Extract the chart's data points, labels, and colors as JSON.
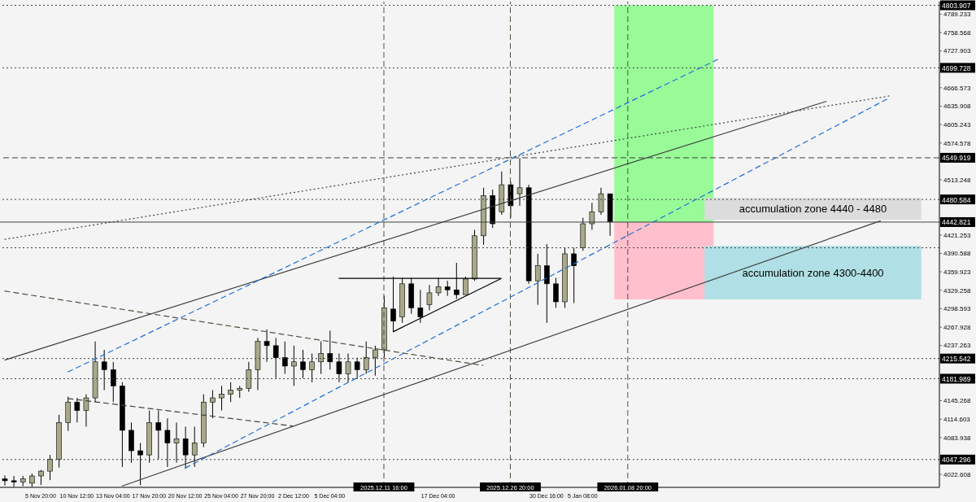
{
  "chart_data": {
    "type": "candlestick",
    "categories": [
      null,
      null,
      null,
      null,
      "5 Nov 20:00",
      null,
      null,
      null,
      "10 Nov 12:00",
      null,
      null,
      null,
      "13 Nov 04:00",
      null,
      null,
      null,
      "17 Nov 20:00",
      null,
      null,
      null,
      "20 Nov 12:00",
      null,
      null,
      null,
      "25 Nov 04:00",
      null,
      null,
      null,
      "27 Nov 20:00",
      null,
      null,
      null,
      "2 Dec 12:00",
      null,
      null,
      null,
      "5 Dec 04:00",
      null,
      null,
      null,
      null,
      null,
      "2025.12.11 16:00",
      null,
      null,
      null,
      null,
      null,
      "17 Dec 04:00",
      null,
      null,
      null,
      null,
      null,
      null,
      null,
      "2025.12.26 20:00",
      null,
      null,
      null,
      "30 Dec 16:00",
      null,
      null,
      null,
      "5 Jan 08:00",
      null,
      null,
      null,
      null,
      "2026.01.08 20:00",
      null,
      null,
      null,
      null,
      null,
      null,
      null,
      null,
      null,
      null,
      null,
      null,
      null,
      null,
      null,
      null,
      null,
      null,
      null,
      null,
      null,
      null,
      null,
      null,
      null,
      null,
      null,
      null,
      null,
      null,
      null,
      null,
      null,
      null
    ],
    "ohlc": [
      [
        4015,
        4021,
        4004,
        4012
      ],
      [
        4012,
        4020,
        4002,
        4010
      ],
      [
        4010,
        4020,
        4003,
        4015
      ],
      [
        4008,
        4024,
        4002,
        4020
      ],
      [
        4020,
        4030,
        4005,
        4028
      ],
      [
        4028,
        4055,
        4013,
        4048
      ],
      [
        4048,
        4122,
        4034,
        4109
      ],
      [
        4109,
        4152,
        4095,
        4143
      ],
      [
        4143,
        4150,
        4109,
        4129
      ],
      [
        4129,
        4156,
        4102,
        4150
      ],
      [
        4150,
        4244,
        4143,
        4210
      ],
      [
        4210,
        4230,
        4163,
        4197
      ],
      [
        4197,
        4210,
        4143,
        4170
      ],
      [
        4170,
        4176,
        4035,
        4096
      ],
      [
        4096,
        4109,
        4042,
        4062
      ],
      [
        4062,
        4075,
        4005,
        4055
      ],
      [
        4055,
        4129,
        4042,
        4109
      ],
      [
        4109,
        4129,
        4048,
        4096
      ],
      [
        4096,
        4116,
        4035,
        4075
      ],
      [
        4075,
        4109,
        4042,
        4082
      ],
      [
        4082,
        4102,
        4032,
        4055
      ],
      [
        4055,
        4102,
        4035,
        4075
      ],
      [
        4075,
        4156,
        4068,
        4143
      ],
      [
        4143,
        4163,
        4116,
        4150
      ],
      [
        4150,
        4170,
        4129,
        4156
      ],
      [
        4156,
        4176,
        4143,
        4163
      ],
      [
        4163,
        4170,
        4150,
        4166
      ],
      [
        4166,
        4210,
        4160,
        4197
      ],
      [
        4197,
        4250,
        4163,
        4244
      ],
      [
        4244,
        4264,
        4210,
        4237
      ],
      [
        4237,
        4250,
        4183,
        4217
      ],
      [
        4217,
        4244,
        4190,
        4203
      ],
      [
        4203,
        4237,
        4170,
        4210
      ],
      [
        4210,
        4230,
        4183,
        4197
      ],
      [
        4197,
        4224,
        4176,
        4210
      ],
      [
        4210,
        4244,
        4190,
        4224
      ],
      [
        4224,
        4262,
        4197,
        4210
      ],
      [
        4210,
        4224,
        4176,
        4190
      ],
      [
        4190,
        4224,
        4176,
        4210
      ],
      [
        4210,
        4217,
        4183,
        4197
      ],
      [
        4197,
        4244,
        4190,
        4217
      ],
      [
        4217,
        4237,
        4187,
        4230
      ],
      [
        4230,
        4320,
        4217,
        4300
      ],
      [
        4298,
        4352,
        4260,
        4278
      ],
      [
        4285,
        4350,
        4275,
        4340
      ],
      [
        4340,
        4350,
        4290,
        4300
      ],
      [
        4300,
        4330,
        4275,
        4285
      ],
      [
        4305,
        4338,
        4296,
        4325
      ],
      [
        4325,
        4350,
        4320,
        4335
      ],
      [
        4335,
        4345,
        4320,
        4330
      ],
      [
        4330,
        4375,
        4315,
        4322
      ],
      [
        4322,
        4352,
        4322,
        4348
      ],
      [
        4348,
        4430,
        4345,
        4420
      ],
      [
        4420,
        4500,
        4405,
        4487
      ],
      [
        4487,
        4497,
        4433,
        4440
      ],
      [
        4460,
        4527,
        4455,
        4505
      ],
      [
        4505,
        4510,
        4450,
        4470
      ],
      [
        4490,
        4549,
        4470,
        4500
      ],
      [
        4500,
        4505,
        4340,
        4345
      ],
      [
        4345,
        4390,
        4305,
        4370
      ],
      [
        4370,
        4406,
        4275,
        4340
      ],
      [
        4340,
        4350,
        4300,
        4310
      ],
      [
        4310,
        4400,
        4300,
        4390
      ],
      [
        4390,
        4400,
        4308,
        4370
      ],
      [
        4400,
        4450,
        4395,
        4440
      ],
      [
        4440,
        4475,
        4430,
        4460
      ],
      [
        4460,
        4500,
        4455,
        4490
      ],
      [
        4490,
        4490,
        4420,
        4443
      ],
      null,
      null,
      null,
      null,
      null,
      null,
      null,
      null,
      null,
      null,
      null,
      null,
      null,
      null,
      null,
      null,
      null,
      null,
      null,
      null,
      null,
      null,
      null,
      null,
      null,
      null,
      null,
      null,
      null,
      null,
      null,
      null,
      null,
      null,
      null,
      null
    ],
    "colors": [
      "#000000",
      "#000000",
      "#a9a98a",
      "#a9a98a",
      "#a9a98a",
      "#a9a98a",
      "#a9a98a",
      "#a9a98a",
      "#000000",
      "#a9a98a",
      "#a9a98a",
      "#000000",
      "#000000",
      "#000000",
      "#000000",
      "#000000",
      "#a9a98a",
      "#000000",
      "#000000",
      "#a9a98a",
      "#000000",
      "#a9a98a",
      "#a9a98a",
      "#a9a98a",
      "#a9a98a",
      "#a9a98a",
      "#a9a98a",
      "#a9a98a",
      "#a9a98a",
      "#000000",
      "#000000",
      "#000000",
      "#a9a98a",
      "#000000",
      "#a9a98a",
      "#a9a98a",
      "#000000",
      "#000000",
      "#a9a98a",
      "#000000",
      "#a9a98a",
      "#a9a98a",
      "#a9a98a",
      "#000000",
      "#a9a98a",
      "#000000",
      "#000000",
      "#a9a98a",
      "#a9a98a",
      "#000000",
      "#000000",
      "#a9a98a",
      "#a9a98a",
      "#a9a98a",
      "#000000",
      "#a9a98a",
      "#000000",
      "#a9a98a",
      "#000000",
      "#a9a98a",
      "#000000",
      "#000000",
      "#a9a98a",
      "#000000",
      "#a9a98a",
      "#a9a98a",
      "#a9a98a",
      "#000000",
      null,
      null,
      null,
      null,
      null,
      null,
      null,
      null,
      null,
      null,
      null,
      null,
      null,
      null,
      null,
      null,
      null,
      null,
      null,
      null,
      null,
      null,
      null,
      null,
      null,
      null,
      null,
      null,
      null,
      null,
      null,
      null,
      null,
      null,
      null,
      null
    ],
    "series": [
      {
        "type": "line",
        "color": "#404040",
        "line_style": "solid",
        "values": [
          4213,
          null,
          null,
          null,
          null,
          null,
          null,
          null,
          null,
          null,
          null,
          null,
          null,
          null,
          null,
          null,
          null,
          null,
          null,
          null,
          null,
          null,
          null,
          null,
          null,
          null,
          null,
          null,
          null,
          null,
          null,
          null,
          null,
          null,
          null,
          null,
          null,
          null,
          null,
          null,
          null,
          null,
          null,
          null,
          null,
          null,
          null,
          null,
          null,
          null,
          null,
          null,
          null,
          null,
          null,
          null,
          null,
          null,
          null,
          null,
          null,
          null,
          null,
          null,
          null,
          null,
          null,
          null,
          null,
          null,
          null,
          null,
          null,
          null,
          null,
          null,
          null,
          null,
          null,
          null,
          null,
          null,
          null,
          null,
          null,
          null,
          null,
          null,
          null,
          null,
          null,
          4644,
          null,
          null,
          null,
          null,
          null,
          null,
          null,
          null,
          null,
          null,
          null,
          null
        ]
      },
      {
        "type": "line",
        "color": "#404040",
        "line_style": "solid",
        "values": [
          null,
          null,
          null,
          null,
          null,
          null,
          null,
          null,
          null,
          null,
          null,
          null,
          null,
          4003,
          null,
          null,
          null,
          null,
          null,
          null,
          null,
          null,
          null,
          null,
          null,
          null,
          null,
          null,
          null,
          null,
          null,
          null,
          null,
          null,
          null,
          null,
          null,
          null,
          null,
          null,
          null,
          null,
          null,
          null,
          null,
          null,
          null,
          null,
          null,
          null,
          null,
          null,
          null,
          null,
          null,
          null,
          null,
          null,
          null,
          null,
          null,
          null,
          null,
          null,
          null,
          null,
          null,
          null,
          null,
          null,
          null,
          null,
          null,
          null,
          null,
          null,
          null,
          null,
          null,
          null,
          null,
          null,
          null,
          null,
          null,
          null,
          null,
          null,
          null,
          null,
          null,
          null,
          null,
          null,
          null,
          null,
          null,
          4445,
          null,
          null,
          null,
          null,
          null,
          null
        ]
      },
      {
        "type": "line",
        "color": "#1e6fd9",
        "line_style": "dashed",
        "values": [
          null,
          null,
          null,
          null,
          null,
          null,
          null,
          4193,
          null,
          null,
          null,
          null,
          null,
          null,
          null,
          null,
          null,
          null,
          null,
          null,
          null,
          null,
          null,
          null,
          null,
          null,
          null,
          null,
          null,
          null,
          null,
          null,
          null,
          null,
          null,
          null,
          null,
          null,
          null,
          null,
          null,
          null,
          null,
          null,
          null,
          null,
          null,
          null,
          null,
          null,
          null,
          null,
          null,
          null,
          null,
          null,
          null,
          null,
          null,
          null,
          null,
          null,
          null,
          null,
          null,
          null,
          null,
          null,
          null,
          null,
          null,
          null,
          null,
          null,
          null,
          null,
          null,
          null,
          null,
          4714,
          null,
          null,
          null,
          null,
          null,
          null,
          null,
          null,
          null,
          null,
          null,
          null,
          null,
          null,
          null,
          null,
          null,
          null,
          null,
          null,
          null,
          null,
          null,
          null
        ]
      },
      {
        "type": "line",
        "color": "#1e6fd9",
        "line_style": "dashed",
        "values": [
          null,
          null,
          null,
          null,
          null,
          null,
          null,
          null,
          null,
          null,
          null,
          null,
          null,
          null,
          null,
          null,
          null,
          null,
          null,
          null,
          4033,
          null,
          null,
          null,
          null,
          null,
          null,
          null,
          null,
          null,
          null,
          null,
          null,
          null,
          null,
          null,
          null,
          null,
          null,
          null,
          null,
          null,
          null,
          null,
          null,
          null,
          null,
          null,
          null,
          null,
          null,
          null,
          null,
          null,
          null,
          null,
          null,
          null,
          null,
          null,
          null,
          null,
          null,
          null,
          null,
          null,
          null,
          null,
          null,
          null,
          null,
          null,
          null,
          null,
          null,
          null,
          null,
          null,
          null,
          null,
          null,
          null,
          null,
          null,
          null,
          null,
          null,
          null,
          null,
          null,
          null,
          null,
          null,
          null,
          null,
          null,
          null,
          null,
          4650,
          null,
          null,
          null,
          null,
          null
        ]
      },
      {
        "type": "line",
        "color": "#404040",
        "line_style": "dotted",
        "values": [
          4414,
          null,
          null,
          null,
          null,
          null,
          null,
          null,
          null,
          null,
          null,
          null,
          null,
          null,
          null,
          null,
          null,
          null,
          null,
          null,
          null,
          null,
          null,
          null,
          null,
          null,
          null,
          null,
          null,
          null,
          null,
          null,
          null,
          null,
          null,
          null,
          null,
          null,
          null,
          null,
          null,
          null,
          null,
          null,
          null,
          null,
          null,
          null,
          null,
          null,
          null,
          null,
          null,
          null,
          null,
          null,
          null,
          null,
          null,
          null,
          null,
          null,
          null,
          null,
          null,
          null,
          null,
          null,
          null,
          null,
          null,
          null,
          null,
          null,
          null,
          null,
          null,
          null,
          null,
          null,
          null,
          null,
          null,
          null,
          null,
          null,
          null,
          null,
          null,
          null,
          null,
          null,
          null,
          null,
          null,
          null,
          null,
          null,
          4653,
          null,
          null,
          null,
          null,
          null
        ]
      },
      {
        "type": "line",
        "color": "#505040",
        "line_style": "dashed",
        "values": [
          4328,
          null,
          null,
          null,
          null,
          null,
          null,
          null,
          null,
          null,
          null,
          null,
          null,
          null,
          null,
          null,
          null,
          null,
          null,
          null,
          null,
          null,
          null,
          null,
          null,
          null,
          null,
          null,
          null,
          null,
          null,
          null,
          null,
          null,
          null,
          null,
          null,
          null,
          null,
          null,
          null,
          null,
          null,
          null,
          null,
          null,
          null,
          null,
          null,
          null,
          null,
          null,
          null,
          4204,
          null,
          null,
          null,
          null,
          null,
          null,
          null,
          null,
          null,
          null,
          null,
          null,
          null,
          null,
          null,
          null,
          null,
          null,
          null,
          null,
          null,
          null,
          null,
          null,
          null,
          null,
          null,
          null,
          null,
          null,
          null,
          null,
          null,
          null,
          null,
          null,
          null,
          null,
          null,
          null,
          null,
          null,
          null,
          null,
          null,
          null,
          null,
          null,
          null,
          null
        ]
      },
      {
        "type": "line",
        "color": "#404040",
        "line_style": "dashed",
        "values": [
          null,
          null,
          null,
          null,
          null,
          null,
          null,
          4149,
          null,
          null,
          null,
          null,
          null,
          null,
          null,
          null,
          null,
          null,
          null,
          null,
          null,
          null,
          null,
          null,
          null,
          null,
          null,
          null,
          null,
          null,
          null,
          null,
          4103,
          null,
          null,
          null,
          null,
          null,
          null,
          null,
          null,
          null,
          null,
          null,
          null,
          null,
          null,
          null,
          null,
          null,
          null,
          null,
          null,
          null,
          null,
          null,
          null,
          null,
          null,
          null,
          null,
          null,
          null,
          null,
          null,
          null,
          null,
          null,
          null,
          null,
          null,
          null,
          null,
          null,
          null,
          null,
          null,
          null,
          null,
          null,
          null,
          null,
          null,
          null,
          null,
          null,
          null,
          null,
          null,
          null,
          null,
          null,
          null,
          null,
          null,
          null,
          null,
          null,
          null,
          null,
          null,
          null,
          null,
          null
        ]
      },
      {
        "type": "line",
        "color": "#000000",
        "line_style": "solid",
        "values": [
          null,
          null,
          null,
          null,
          null,
          null,
          null,
          null,
          null,
          null,
          null,
          null,
          null,
          null,
          null,
          null,
          null,
          null,
          null,
          null,
          null,
          null,
          null,
          null,
          null,
          null,
          null,
          null,
          null,
          null,
          null,
          null,
          null,
          null,
          null,
          null,
          null,
          4349,
          null,
          null,
          null,
          null,
          null,
          null,
          null,
          null,
          null,
          null,
          null,
          null,
          null,
          null,
          null,
          null,
          null,
          4349,
          null,
          null,
          null,
          null,
          null,
          null,
          null,
          null,
          null,
          null,
          null,
          null,
          null,
          null,
          null,
          null,
          null,
          null,
          null,
          null,
          null,
          null,
          null,
          null,
          null,
          null,
          null,
          null,
          null,
          null,
          null,
          null,
          null,
          null,
          null,
          null,
          null,
          null,
          null,
          null,
          null,
          null,
          null,
          null,
          null,
          null,
          null,
          null
        ]
      },
      {
        "type": "line",
        "color": "#000000",
        "line_style": "solid",
        "values": [
          null,
          null,
          null,
          null,
          null,
          null,
          null,
          null,
          null,
          null,
          null,
          null,
          null,
          null,
          null,
          null,
          null,
          null,
          null,
          null,
          null,
          null,
          null,
          null,
          null,
          null,
          null,
          null,
          null,
          null,
          null,
          null,
          null,
          null,
          null,
          null,
          null,
          null,
          null,
          null,
          null,
          null,
          null,
          4260,
          null,
          null,
          null,
          null,
          null,
          null,
          null,
          null,
          null,
          null,
          null,
          4349,
          null,
          null,
          null,
          null,
          null,
          null,
          null,
          null,
          null,
          null,
          null,
          null,
          null,
          null,
          null,
          null,
          null,
          null,
          null,
          null,
          null,
          null,
          null,
          null,
          null,
          null,
          null,
          null,
          null,
          null,
          null,
          null,
          null,
          null,
          null,
          null,
          null,
          null,
          null,
          null,
          null,
          null,
          null,
          null,
          null,
          null,
          null,
          null
        ]
      }
    ],
    "ylim": [
      4001,
      4810
    ],
    "yticks": [
      4022.608,
      4083.938,
      4114.603,
      4145.268,
      4237.263,
      4267.928,
      4298.593,
      4329.258,
      4359.923,
      4390.588,
      4421.253,
      4513.248,
      4574.578,
      4605.243,
      4635.908,
      4666.573,
      4727.903,
      4758.568,
      4789.233
    ],
    "ref_lines": [
      {
        "axis": "y",
        "value": 4803.907,
        "label": "4803.907",
        "color": "#404040",
        "line_style": "dotted"
      },
      {
        "axis": "y",
        "value": 4699.728,
        "label": "4699.728",
        "color": "#404040",
        "line_style": "dotted"
      },
      {
        "axis": "y",
        "value": 4549.919,
        "label": "4549.919",
        "color": "#404040",
        "line_style": "dashed"
      },
      {
        "axis": "y",
        "value": 4480.584,
        "label": "4480.584",
        "color": "#404040",
        "line_style": "dotted"
      },
      {
        "axis": "y",
        "value": 4442.821,
        "label": "4442.821",
        "color": "#404040",
        "line_style": "solid"
      },
      {
        "axis": "y",
        "value": 4400,
        "color": "#404040",
        "line_style": "dotted"
      },
      {
        "axis": "y",
        "value": 4215.542,
        "label": "4215.542",
        "color": "#404040",
        "line_style": "dotted"
      },
      {
        "axis": "y",
        "value": 4181.989,
        "label": "4181.989",
        "color": "#404040",
        "line_style": "dotted"
      },
      {
        "axis": "y",
        "value": 4047.296,
        "label": "4047.296",
        "color": "#404040",
        "line_style": "dotted"
      },
      {
        "axis": "x",
        "value": "2025.12.11 16:00",
        "color": "#505040",
        "line_style": "dashed"
      },
      {
        "axis": "x",
        "value": "2025.12.26 20:00",
        "color": "#505040",
        "line_style": "dashed"
      },
      {
        "axis": "x",
        "value": "2026.01.08 20:00",
        "color": "#505040",
        "line_style": "dashed"
      }
    ],
    "bands": [
      {
        "axis": "y",
        "from": 4442.821,
        "to": 4803.907,
        "color": "#98fb98"
      },
      {
        "axis": "y",
        "from": 4314,
        "to": 4442.821,
        "color": "#ffc0cb"
      },
      {
        "axis": "y",
        "from": 4447,
        "to": 4483,
        "label": "accumulation zone 4440 - 4480",
        "color": "#dcdcdc"
      },
      {
        "axis": "y",
        "from": 4314,
        "to": 4403,
        "label": "accumulation zone 4300-4400",
        "color": "#b0e0e6"
      }
    ]
  }
}
